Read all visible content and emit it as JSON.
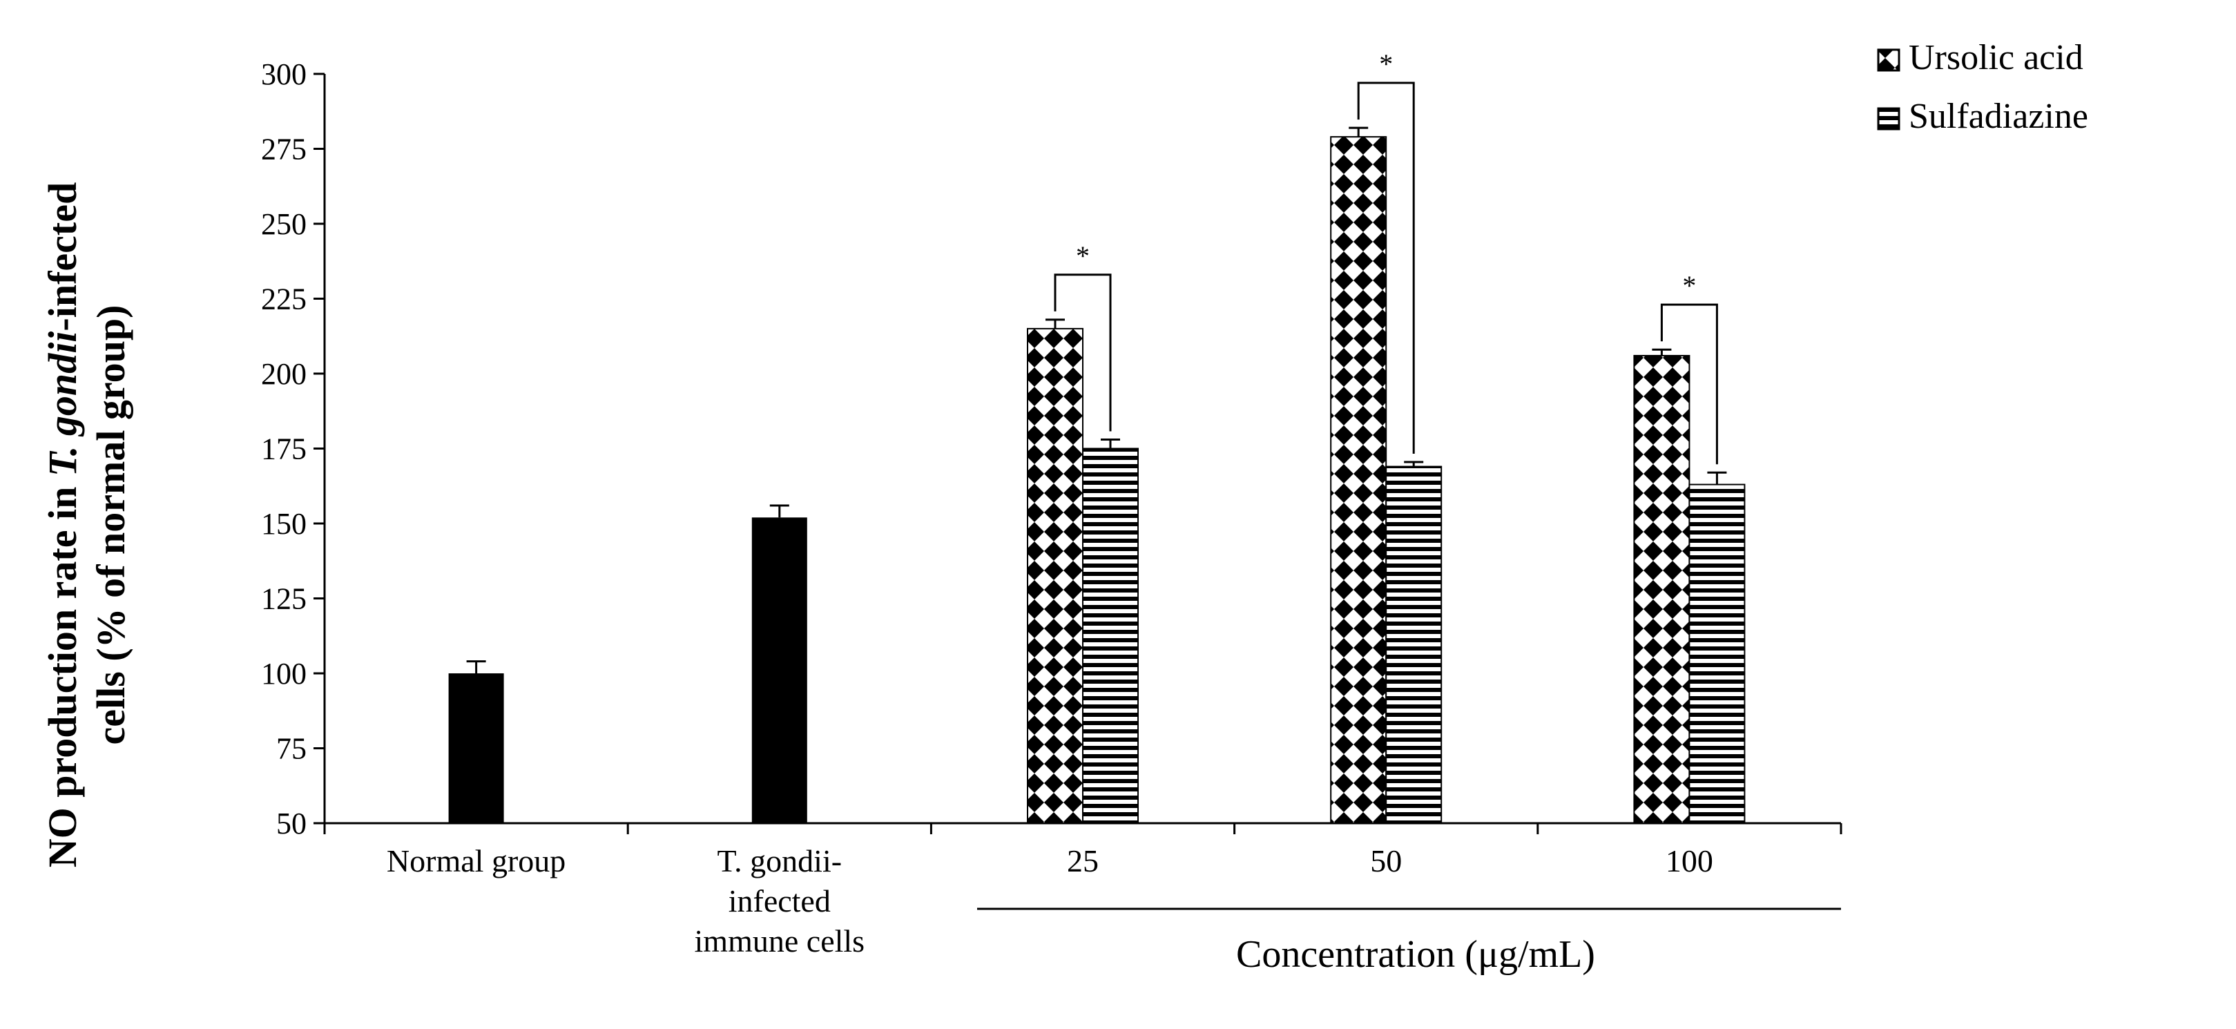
{
  "chart_data": {
    "type": "bar",
    "title": "",
    "ylabel_line1_prefix": "NO production rate in ",
    "ylabel_line1_italic": "T. gondii",
    "ylabel_line1_suffix": "-infected",
    "ylabel_line2": "cells (% of normal group)",
    "xlabel": "Concentration (μg/mL)",
    "ylim": [
      50,
      300
    ],
    "yticks": [
      50,
      75,
      100,
      125,
      150,
      175,
      200,
      225,
      250,
      275,
      300
    ],
    "categories": [
      [
        "Normal group"
      ],
      [
        "T. gondii-",
        "infected",
        "immune cells"
      ],
      [
        "25"
      ],
      [
        "50"
      ],
      [
        "100"
      ]
    ],
    "controls": [
      {
        "category_index": 0,
        "value": 100,
        "error": 4
      },
      {
        "category_index": 1,
        "value": 152,
        "error": 4
      }
    ],
    "series": [
      {
        "name": "Ursolic acid",
        "pattern": "checker",
        "values": [
          null,
          null,
          215,
          279,
          206
        ],
        "errors": [
          null,
          null,
          3,
          3,
          2
        ]
      },
      {
        "name": "Sulfadiazine",
        "pattern": "horizontal-lines",
        "values": [
          null,
          null,
          175,
          169,
          163
        ],
        "errors": [
          null,
          null,
          3,
          1.5,
          4
        ]
      }
    ],
    "significance": [
      {
        "category_index": 2,
        "label": "*"
      },
      {
        "category_index": 3,
        "label": "*"
      },
      {
        "category_index": 4,
        "label": "*"
      }
    ],
    "legend": {
      "position": "top-right",
      "entries": [
        "Ursolic acid",
        "Sulfadiazine"
      ]
    },
    "grid": false
  }
}
